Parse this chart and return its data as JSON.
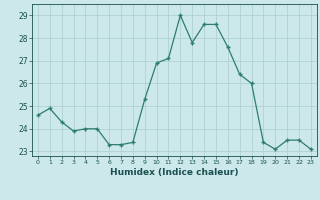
{
  "x": [
    0,
    1,
    2,
    3,
    4,
    5,
    6,
    7,
    8,
    9,
    10,
    11,
    12,
    13,
    14,
    15,
    16,
    17,
    18,
    19,
    20,
    21,
    22,
    23
  ],
  "y": [
    24.6,
    24.9,
    24.3,
    23.9,
    24.0,
    24.0,
    23.3,
    23.3,
    23.4,
    25.3,
    26.9,
    27.1,
    29.0,
    27.8,
    28.6,
    28.6,
    27.6,
    26.4,
    26.0,
    23.4,
    23.1,
    23.5,
    23.5,
    23.1
  ],
  "xlabel": "Humidex (Indice chaleur)",
  "ylim": [
    22.8,
    29.5
  ],
  "yticks": [
    23,
    24,
    25,
    26,
    27,
    28,
    29
  ],
  "xticks": [
    0,
    1,
    2,
    3,
    4,
    5,
    6,
    7,
    8,
    9,
    10,
    11,
    12,
    13,
    14,
    15,
    16,
    17,
    18,
    19,
    20,
    21,
    22,
    23
  ],
  "line_color": "#2e7d6e",
  "marker": "+",
  "bg_color": "#cce8ea",
  "grid_color": "#aacdd0",
  "tick_color": "#1a5050",
  "label_color": "#1a5050",
  "axis_color": "#1a5050"
}
